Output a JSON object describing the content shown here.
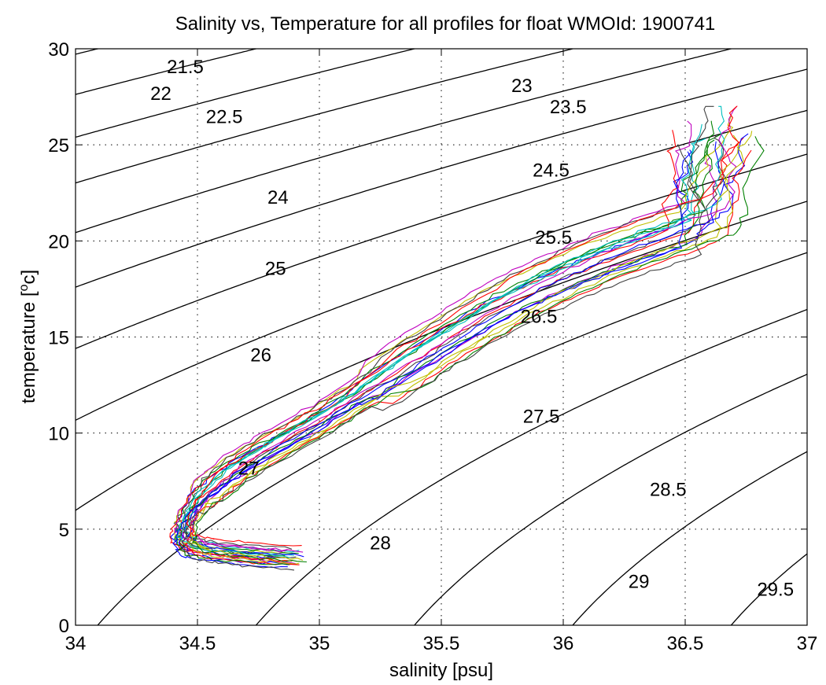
{
  "chart_data": {
    "type": "line",
    "title": "Salinity vs, Temperature for all profiles for float WMOId: 1900741",
    "xlabel": "salinity [psu]",
    "ylabel": "temperature [",
    "ylabel_sup": "o",
    "ylabel_end": "c]",
    "xlim": [
      34,
      37
    ],
    "ylim": [
      0,
      30
    ],
    "xticks": [
      34,
      34.5,
      35,
      35.5,
      36,
      36.5,
      37
    ],
    "xtick_labels": [
      "34",
      "34.5",
      "35",
      "35.5",
      "36",
      "36.5",
      "37"
    ],
    "yticks": [
      0,
      5,
      10,
      15,
      20,
      25,
      30
    ],
    "ytick_labels": [
      "0",
      "5",
      "10",
      "15",
      "20",
      "25",
      "30"
    ],
    "grid": true,
    "density_contours": {
      "levels": [
        21.5,
        22,
        22.5,
        23,
        23.5,
        24,
        24.5,
        25,
        25.5,
        26,
        26.5,
        27,
        27.5,
        28,
        28.5,
        29,
        29.5
      ],
      "labels": [
        {
          "text": "21.5",
          "s": 34.45,
          "t": 29.0
        },
        {
          "text": "22",
          "s": 34.35,
          "t": 27.6
        },
        {
          "text": "22.5",
          "s": 34.61,
          "t": 26.4
        },
        {
          "text": "23",
          "s": 35.83,
          "t": 28.0
        },
        {
          "text": "23.5",
          "s": 36.02,
          "t": 26.9
        },
        {
          "text": "24",
          "s": 34.83,
          "t": 22.2
        },
        {
          "text": "24.5",
          "s": 35.95,
          "t": 23.6
        },
        {
          "text": "25",
          "s": 34.82,
          "t": 18.5
        },
        {
          "text": "25.5",
          "s": 35.96,
          "t": 20.1
        },
        {
          "text": "26",
          "s": 34.76,
          "t": 14.0
        },
        {
          "text": "26.5",
          "s": 35.9,
          "t": 16.0
        },
        {
          "text": "27",
          "s": 34.71,
          "t": 8.1
        },
        {
          "text": "27.5",
          "s": 35.91,
          "t": 10.8
        },
        {
          "text": "28",
          "s": 35.25,
          "t": 4.2
        },
        {
          "text": "28.5",
          "s": 36.43,
          "t": 7.0
        },
        {
          "text": "29",
          "s": 36.31,
          "t": 2.2
        },
        {
          "text": "29.5",
          "s": 36.87,
          "t": 1.8
        }
      ]
    },
    "series": [
      {
        "color": "#0000ff",
        "offset_s": -0.04,
        "offset_t": 0.0
      },
      {
        "color": "#008000",
        "offset_s": -0.02,
        "offset_t": 0.4
      },
      {
        "color": "#ff0000",
        "offset_s": 0.0,
        "offset_t": -0.3
      },
      {
        "color": "#00bfbf",
        "offset_s": 0.02,
        "offset_t": 0.6
      },
      {
        "color": "#bf00bf",
        "offset_s": 0.035,
        "offset_t": -0.5
      },
      {
        "color": "#bfbf00",
        "offset_s": -0.03,
        "offset_t": 0.8
      },
      {
        "color": "#404040",
        "offset_s": 0.05,
        "offset_t": 0.2
      },
      {
        "color": "#0000ff",
        "offset_s": 0.015,
        "offset_t": -0.8
      },
      {
        "color": "#008000",
        "offset_s": 0.045,
        "offset_t": 0.9
      },
      {
        "color": "#ff0000",
        "offset_s": -0.05,
        "offset_t": -0.2
      },
      {
        "color": "#00bfbf",
        "offset_s": 0.06,
        "offset_t": 1.1
      },
      {
        "color": "#bf00bf",
        "offset_s": -0.015,
        "offset_t": 1.3
      },
      {
        "color": "#bfbf00",
        "offset_s": 0.07,
        "offset_t": -0.6
      },
      {
        "color": "#404040",
        "offset_s": 0.025,
        "offset_t": 1.5
      },
      {
        "color": "#0000ff",
        "offset_s": 0.08,
        "offset_t": 0.5
      },
      {
        "color": "#ff0000",
        "offset_s": 0.055,
        "offset_t": -1.0
      },
      {
        "color": "#008000",
        "offset_s": -0.01,
        "offset_t": -0.9
      },
      {
        "color": "#bf00bf",
        "offset_s": 0.09,
        "offset_t": 1.0
      },
      {
        "color": "#00bfbf",
        "offset_s": 0.005,
        "offset_t": 0.3
      },
      {
        "color": "#bfbf00",
        "offset_s": 0.1,
        "offset_t": 0.0
      },
      {
        "color": "#ff0000",
        "offset_s": 0.065,
        "offset_t": 1.8
      },
      {
        "color": "#0000ff",
        "offset_s": -0.025,
        "offset_t": -1.2
      },
      {
        "color": "#008000",
        "offset_s": 0.11,
        "offset_t": -0.4
      },
      {
        "color": "#404040",
        "offset_s": 0.03,
        "offset_t": -1.5
      }
    ],
    "base_curve": [
      {
        "s": 34.88,
        "t": 3.45
      },
      {
        "s": 34.7,
        "t": 3.6
      },
      {
        "s": 34.55,
        "t": 3.8
      },
      {
        "s": 34.46,
        "t": 4.0
      },
      {
        "s": 34.42,
        "t": 4.5
      },
      {
        "s": 34.44,
        "t": 5.5
      },
      {
        "s": 34.5,
        "t": 6.7
      },
      {
        "s": 34.6,
        "t": 7.8
      },
      {
        "s": 34.75,
        "t": 9.0
      },
      {
        "s": 34.95,
        "t": 10.4
      },
      {
        "s": 35.15,
        "t": 12.0
      },
      {
        "s": 35.35,
        "t": 13.7
      },
      {
        "s": 35.55,
        "t": 15.3
      },
      {
        "s": 35.75,
        "t": 16.8
      },
      {
        "s": 35.95,
        "t": 18.0
      },
      {
        "s": 36.15,
        "t": 19.1
      },
      {
        "s": 36.35,
        "t": 20.0
      },
      {
        "s": 36.55,
        "t": 20.9
      }
    ]
  }
}
